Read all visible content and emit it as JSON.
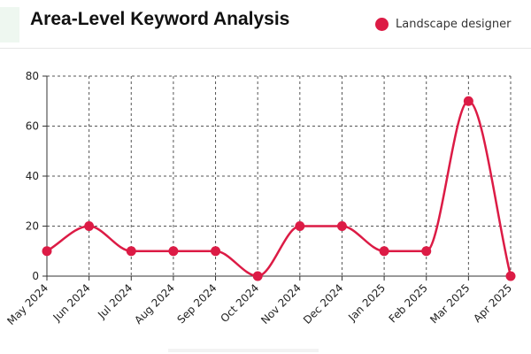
{
  "title": "Area-Level Keyword Analysis",
  "legend": {
    "label": "Landscape designer",
    "color": "#dc1b45"
  },
  "chart_data": {
    "type": "line",
    "title": "Area-Level Keyword Analysis",
    "categories": [
      "May 2024",
      "Jun 2024",
      "Jul 2024",
      "Aug 2024",
      "Sep 2024",
      "Oct 2024",
      "Nov 2024",
      "Dec 2024",
      "Jan 2025",
      "Feb 2025",
      "Mar 2025",
      "Apr 2025"
    ],
    "series": [
      {
        "name": "Landscape designer",
        "color": "#dc1b45",
        "values": [
          10,
          20,
          10,
          10,
          10,
          0,
          20,
          20,
          10,
          10,
          70,
          0
        ]
      }
    ],
    "ylim": [
      0,
      80
    ],
    "yticks": [
      0,
      20,
      40,
      60,
      80
    ],
    "grid": true,
    "grid_style": "dashed",
    "smooth": true,
    "legend_position": "top-right",
    "xlabel": "",
    "ylabel": ""
  }
}
